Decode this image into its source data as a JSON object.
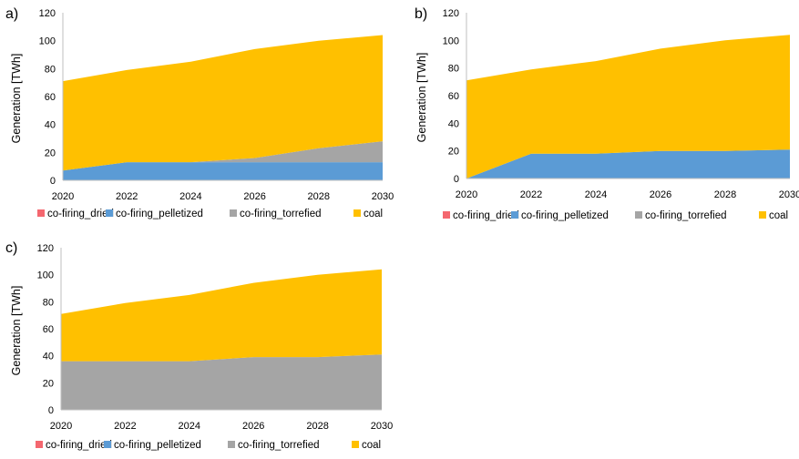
{
  "colors": {
    "co-firing_dried": "#f4676f",
    "co-firing_pelletized": "#5b9bd5",
    "co-firing_torrefied": "#a5a5a5",
    "coal": "#ffc000"
  },
  "chart_data": [
    {
      "type": "area",
      "panel_label": "a)",
      "x": [
        2020,
        2022,
        2024,
        2026,
        2028,
        2030
      ],
      "xlim": [
        2020,
        2030
      ],
      "x_ticks": [
        "2020",
        "2022",
        "2024",
        "2026",
        "2028",
        "2030"
      ],
      "ylim": [
        0,
        120
      ],
      "y_ticks": [
        "0",
        "20",
        "40",
        "60",
        "80",
        "100",
        "120"
      ],
      "ylabel": "Generation [TWh]",
      "stacked": true,
      "legend_position": "bottom",
      "series": [
        {
          "name": "co-firing_dried",
          "values": [
            0,
            0,
            0,
            0,
            0,
            0
          ]
        },
        {
          "name": "co-firing_pelletized",
          "values": [
            7,
            13,
            13,
            13,
            13,
            13
          ]
        },
        {
          "name": "co-firing_torrefied",
          "values": [
            0,
            0,
            0,
            3,
            10,
            15
          ]
        },
        {
          "name": "coal",
          "values": [
            64,
            66,
            72,
            78,
            77,
            76
          ]
        }
      ]
    },
    {
      "type": "area",
      "panel_label": "b)",
      "x": [
        2020,
        2022,
        2024,
        2026,
        2028,
        2030
      ],
      "xlim": [
        2020,
        2030
      ],
      "x_ticks": [
        "2020",
        "2022",
        "2024",
        "2026",
        "2028",
        "2030"
      ],
      "ylim": [
        0,
        120
      ],
      "y_ticks": [
        "0",
        "20",
        "40",
        "60",
        "80",
        "100",
        "120"
      ],
      "ylabel": "Generation [TWh]",
      "stacked": true,
      "legend_position": "bottom",
      "series": [
        {
          "name": "co-firing_dried",
          "values": [
            0,
            0,
            0,
            0,
            0,
            0
          ]
        },
        {
          "name": "co-firing_pelletized",
          "values": [
            0,
            18,
            18,
            20,
            20,
            21
          ]
        },
        {
          "name": "co-firing_torrefied",
          "values": [
            0,
            0,
            0,
            0,
            0,
            0
          ]
        },
        {
          "name": "coal",
          "values": [
            71,
            61,
            67,
            74,
            80,
            83
          ]
        }
      ]
    },
    {
      "type": "area",
      "panel_label": "c)",
      "x": [
        2020,
        2022,
        2024,
        2026,
        2028,
        2030
      ],
      "xlim": [
        2020,
        2030
      ],
      "x_ticks": [
        "2020",
        "2022",
        "2024",
        "2026",
        "2028",
        "2030"
      ],
      "ylim": [
        0,
        120
      ],
      "y_ticks": [
        "0",
        "20",
        "40",
        "60",
        "80",
        "100",
        "120"
      ],
      "ylabel": "Generation [TWh]",
      "stacked": true,
      "legend_position": "bottom",
      "series": [
        {
          "name": "co-firing_dried",
          "values": [
            0,
            0,
            0,
            0,
            0,
            0
          ]
        },
        {
          "name": "co-firing_pelletized",
          "values": [
            0,
            0,
            0,
            0,
            0,
            0
          ]
        },
        {
          "name": "co-firing_torrefied",
          "values": [
            36,
            36,
            36,
            39,
            39,
            41
          ]
        },
        {
          "name": "coal",
          "values": [
            35,
            43,
            49,
            55,
            61,
            63
          ]
        }
      ]
    }
  ]
}
